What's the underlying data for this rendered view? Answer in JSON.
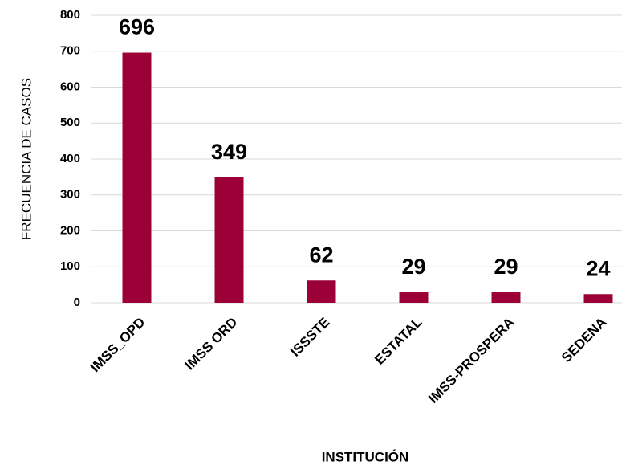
{
  "chart_data": {
    "type": "bar",
    "xlabel": "INSTITUCIÓN",
    "ylabel": "FRECUENCIA DE CASOS",
    "categories": [
      "IMSS_OPD",
      "IMSS ORD",
      "ISSSTE",
      "ESTATAL",
      "IMSS-PROSPERA",
      "SEDENA"
    ],
    "values": [
      696,
      349,
      62,
      29,
      29,
      24
    ],
    "color": "#9b0036",
    "ylim": [
      0,
      800
    ],
    "yticks": [
      0,
      100,
      200,
      300,
      400,
      500,
      600,
      700,
      800
    ],
    "grid": true
  }
}
